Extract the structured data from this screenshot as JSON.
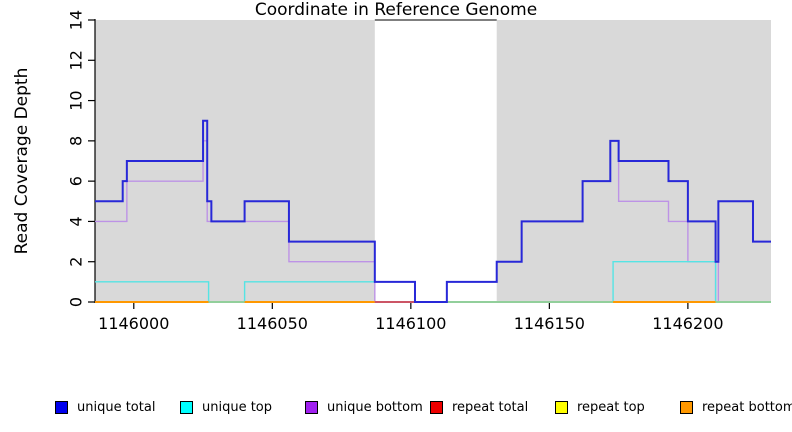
{
  "chart_data": {
    "type": "line",
    "subtype": "step-coverage",
    "title": "",
    "xlabel": "Coordinate in Reference Genome",
    "ylabel": "Read Coverage Depth",
    "xlim": [
      1145986,
      1146230
    ],
    "ylim": [
      0,
      14
    ],
    "grid": false,
    "x_ticks": [
      1146000,
      1146050,
      1146100,
      1146150,
      1146200
    ],
    "y_ticks": [
      0,
      2,
      4,
      6,
      8,
      10,
      12,
      14
    ],
    "background_bands": [
      {
        "x0": 1145986,
        "x1": 1146087,
        "color": "#d9d9d9"
      },
      {
        "x0": 1146131,
        "x1": 1146230,
        "color": "#d9d9d9"
      }
    ],
    "gap_top_line": {
      "x0": 1146087,
      "x1": 1146131,
      "y": 14,
      "color": "#7f7f7f"
    },
    "series": [
      {
        "name": "unique total",
        "color": "#2828d8",
        "width": 2,
        "steps": [
          [
            1145986,
            5
          ],
          [
            1145996,
            6
          ],
          [
            1145997.5,
            7
          ],
          [
            1146025,
            9
          ],
          [
            1146026.5,
            5
          ],
          [
            1146028,
            4
          ],
          [
            1146040,
            5
          ],
          [
            1146056,
            3
          ],
          [
            1146087,
            1
          ],
          [
            1146101.5,
            0
          ],
          [
            1146113,
            1
          ],
          [
            1146131,
            2
          ],
          [
            1146140,
            4
          ],
          [
            1146162,
            6
          ],
          [
            1146172,
            8
          ],
          [
            1146175,
            7
          ],
          [
            1146193,
            6
          ],
          [
            1146200,
            4
          ],
          [
            1146210,
            2
          ],
          [
            1146211,
            5
          ],
          [
            1146223.5,
            3
          ],
          [
            1146230,
            3
          ]
        ]
      },
      {
        "name": "unique top",
        "color": "#55e4e4",
        "width": 1.4,
        "steps": [
          [
            1145986,
            1
          ],
          [
            1146027,
            0
          ],
          [
            1146040,
            1
          ],
          [
            1146101.5,
            0
          ],
          [
            1146173,
            2
          ],
          [
            1146210,
            0
          ],
          [
            1146230,
            0
          ]
        ]
      },
      {
        "name": "unique bottom",
        "color": "#bd93e6",
        "width": 1.4,
        "steps": [
          [
            1145986,
            4
          ],
          [
            1145997.5,
            6
          ],
          [
            1146025,
            8
          ],
          [
            1146026.5,
            4
          ],
          [
            1146056,
            2
          ],
          [
            1146087,
            0
          ],
          [
            1146113,
            1
          ],
          [
            1146131,
            2
          ],
          [
            1146140,
            4
          ],
          [
            1146162,
            6
          ],
          [
            1146172,
            8
          ],
          [
            1146175,
            5
          ],
          [
            1146193,
            4
          ],
          [
            1146200,
            2
          ],
          [
            1146210,
            0
          ],
          [
            1146211,
            5
          ],
          [
            1146223.5,
            3
          ],
          [
            1146230,
            3
          ]
        ]
      },
      {
        "name": "repeat total",
        "color": "#dd0000",
        "width": 1.4,
        "steps": [
          [
            1145986,
            0
          ],
          [
            1146230,
            0
          ]
        ]
      },
      {
        "name": "repeat top",
        "color": "#f0f000",
        "width": 1.4,
        "steps": [
          [
            1145986,
            0
          ],
          [
            1146230,
            0
          ]
        ]
      },
      {
        "name": "repeat bottom",
        "color": "#ff9800",
        "width": 2,
        "steps": [
          [
            1145986,
            0
          ],
          [
            1146230,
            0
          ]
        ]
      }
    ],
    "baseline_segments": [
      {
        "x0": 1145986,
        "x1": 1146027,
        "color": "#ff9800"
      },
      {
        "x0": 1146027,
        "x1": 1146040,
        "color": "#92cf9b"
      },
      {
        "x0": 1146040,
        "x1": 1146087,
        "color": "#ff9800"
      },
      {
        "x0": 1146087,
        "x1": 1146101.5,
        "color": "#cc5566"
      },
      {
        "x0": 1146113,
        "x1": 1146173,
        "color": "#92cf9b"
      },
      {
        "x0": 1146173,
        "x1": 1146210,
        "color": "#ff9800"
      },
      {
        "x0": 1146210,
        "x1": 1146230,
        "color": "#92cf9b"
      }
    ]
  },
  "legend": {
    "items": [
      {
        "label": "unique total",
        "color": "#0000ee"
      },
      {
        "label": "unique top",
        "color": "#00ffff"
      },
      {
        "label": "unique bottom",
        "color": "#a020f0"
      },
      {
        "label": "repeat total",
        "color": "#ee0000"
      },
      {
        "label": "repeat top",
        "color": "#ffff00"
      },
      {
        "label": "repeat bottom",
        "color": "#ff9800"
      }
    ]
  }
}
